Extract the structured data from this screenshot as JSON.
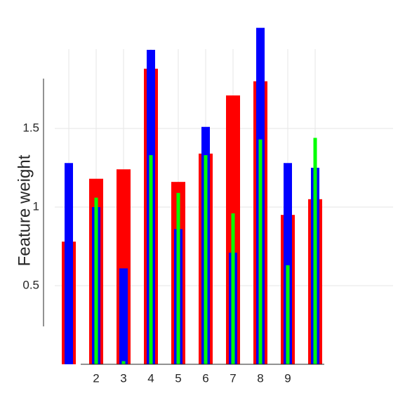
{
  "chart_data": {
    "type": "bar",
    "ylabel": "Feature weight",
    "categories": [
      null,
      "2",
      "3",
      "4",
      "5",
      "6",
      "7",
      "8",
      "9",
      null
    ],
    "series": [
      {
        "color": "#ff0000",
        "values": [
          0.78,
          1.18,
          1.24,
          1.88,
          1.16,
          1.34,
          1.71,
          1.8,
          0.95,
          1.05
        ]
      },
      {
        "color": "#0000ff",
        "values": [
          1.28,
          1.0,
          0.61,
          2.0,
          0.86,
          1.51,
          0.71,
          2.14,
          1.28,
          1.25
        ]
      },
      {
        "color": "#00ff00",
        "values": [
          null,
          1.06,
          0.02,
          1.33,
          1.09,
          1.33,
          0.96,
          1.43,
          0.63,
          1.44
        ]
      }
    ],
    "ylim": [
      0,
      2.2
    ],
    "yticks": [
      0.5,
      1,
      1.5
    ],
    "grid": true
  }
}
